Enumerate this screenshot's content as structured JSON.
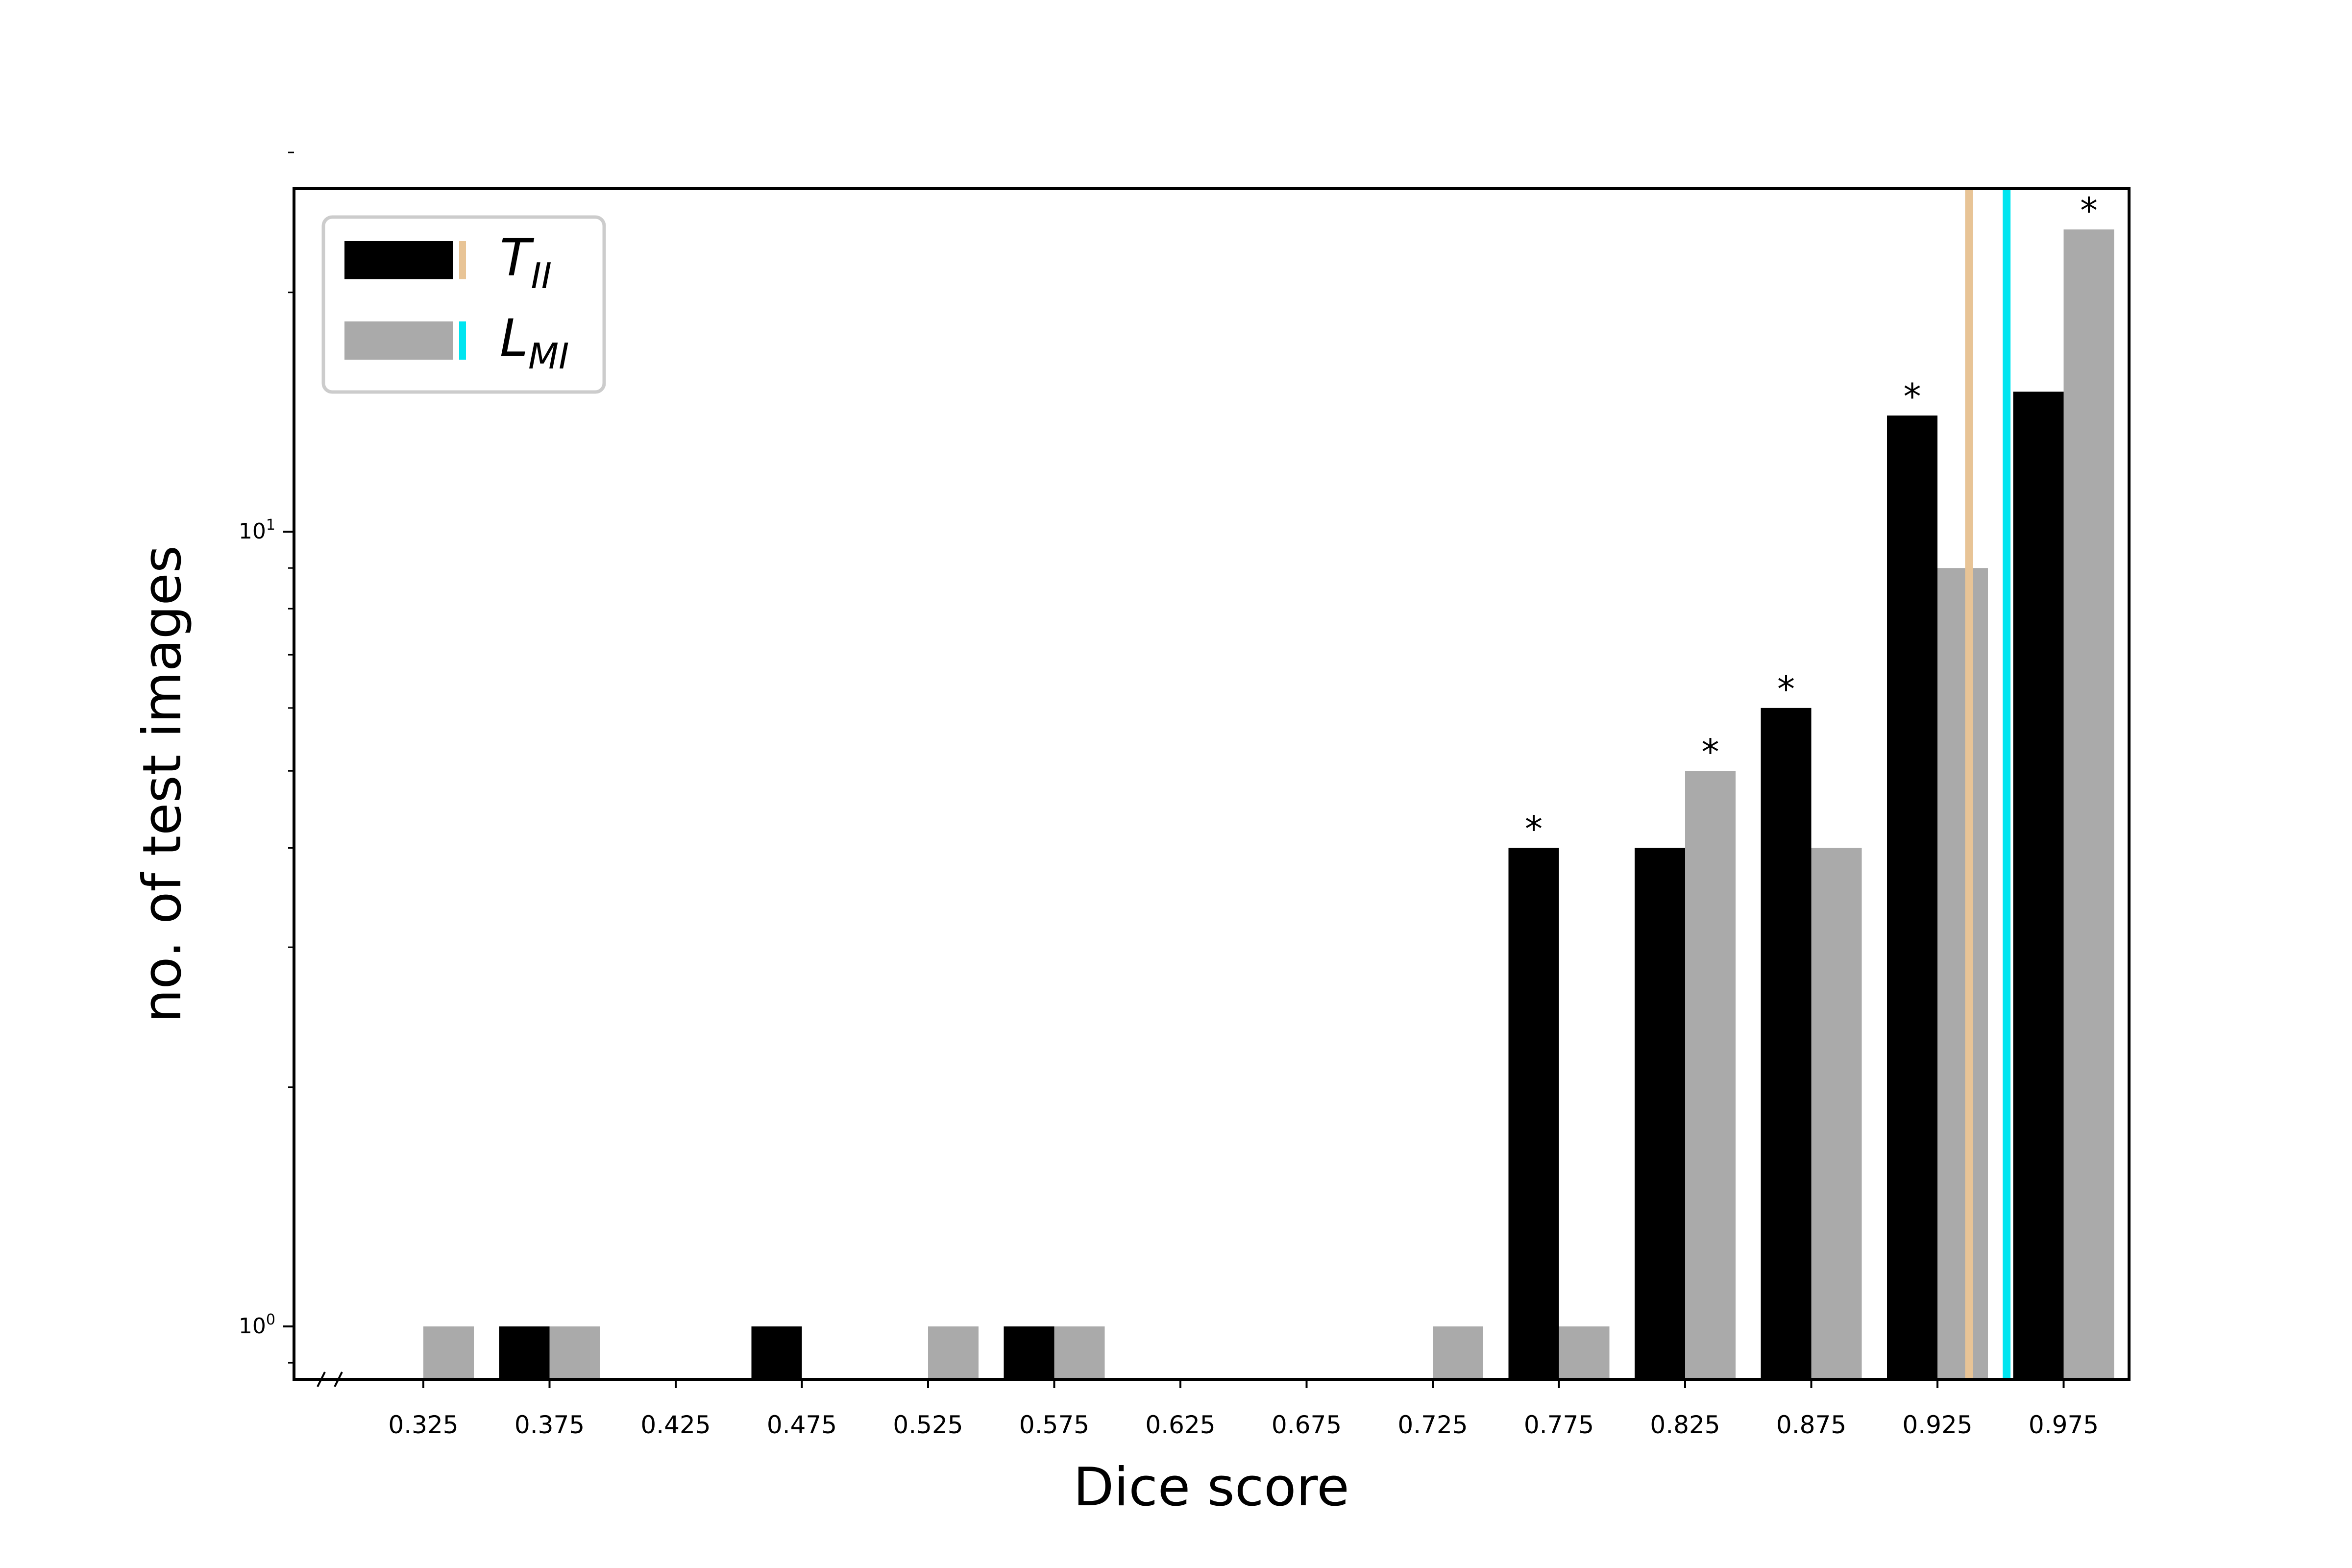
{
  "chart_data": {
    "type": "bar",
    "categories": [
      "0.325",
      "0.375",
      "0.425",
      "0.475",
      "0.525",
      "0.575",
      "0.625",
      "0.675",
      "0.725",
      "0.775",
      "0.825",
      "0.875",
      "0.925",
      "0.975"
    ],
    "series": [
      {
        "name": "T",
        "name_subscript": "II",
        "color": "#000000",
        "values": [
          0,
          1,
          0,
          1,
          0,
          1,
          0,
          0,
          0,
          4,
          4,
          6,
          14,
          15
        ],
        "significant": [
          false,
          false,
          false,
          false,
          false,
          false,
          false,
          false,
          false,
          true,
          false,
          true,
          true,
          false
        ]
      },
      {
        "name": "L",
        "name_subscript": "MI",
        "color": "#aaaaaa",
        "values": [
          1,
          1,
          0,
          0,
          1,
          1,
          0,
          0,
          1,
          1,
          5,
          4,
          9,
          24
        ],
        "significant": [
          false,
          false,
          false,
          false,
          false,
          false,
          false,
          false,
          false,
          false,
          true,
          false,
          false,
          true
        ]
      }
    ],
    "markers": [
      {
        "series": "T",
        "value": 0.9375,
        "color": "#e8c496"
      },
      {
        "series": "L",
        "value": 0.9524,
        "color": "#00e5f0"
      }
    ],
    "significance_symbol": "*",
    "xlabel": "Dice score",
    "ylabel": "no. of test images",
    "yscale": "log",
    "ylim": [
      0.8,
      30
    ],
    "yticks": [
      {
        "value": 1,
        "base": "10",
        "exp": "0"
      },
      {
        "value": 10,
        "base": "10",
        "exp": "1"
      }
    ],
    "legend_position": "top-left",
    "grid": false
  }
}
